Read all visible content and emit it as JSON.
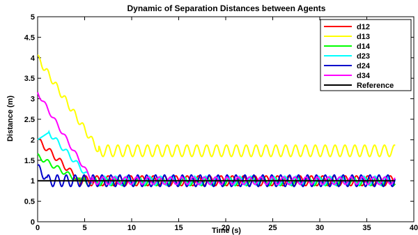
{
  "chart_data": {
    "type": "line",
    "title": "Dynamic of Separation Distances between Agents",
    "xlabel": "Time (s)",
    "ylabel": "Distance (m)",
    "xlim": [
      0,
      40
    ],
    "ylim": [
      0,
      5
    ],
    "xticks": [
      0,
      5,
      10,
      15,
      20,
      25,
      30,
      35,
      40
    ],
    "yticks": [
      0,
      0.5,
      1,
      1.5,
      2,
      2.5,
      3,
      3.5,
      4,
      4.5,
      5
    ],
    "legend_position": "top-right",
    "grid": false,
    "series": [
      {
        "name": "d12",
        "color": "#ff0000",
        "initial": 2.0,
        "settle_time": 4.5,
        "steady_mean": 1.0,
        "amplitude": 0.12,
        "period": 1.2,
        "phase": 0.0,
        "x_end": 38
      },
      {
        "name": "d13",
        "color": "#ffff00",
        "initial": 4.0,
        "settle_time": 6.5,
        "steady_mean": 1.73,
        "amplitude": 0.14,
        "period": 1.05,
        "phase": 0.8,
        "x_end": 38
      },
      {
        "name": "d14",
        "color": "#00ff00",
        "initial": 1.6,
        "settle_time": 4.5,
        "steady_mean": 0.98,
        "amplitude": 0.1,
        "period": 1.2,
        "phase": 1.5,
        "x_end": 38
      },
      {
        "name": "d23",
        "color": "#00ffff",
        "initial": 2.0,
        "peak": 2.18,
        "peak_time": 1.2,
        "settle_time": 5.8,
        "steady_mean": 1.0,
        "amplitude": 0.11,
        "period": 1.2,
        "phase": 2.2,
        "x_end": 38
      },
      {
        "name": "d24",
        "color": "#0000cc",
        "initial": 1.35,
        "settle_time": 1.0,
        "steady_mean": 1.0,
        "amplitude": 0.14,
        "period": 0.95,
        "phase": 0.3,
        "x_end": 38
      },
      {
        "name": "d34",
        "color": "#ff00ff",
        "initial": 3.15,
        "settle_time": 5.8,
        "steady_mean": 1.0,
        "amplitude": 0.09,
        "period": 1.2,
        "phase": 3.0,
        "x_end": 38
      },
      {
        "name": "Reference",
        "color": "#000000",
        "x": [
          0,
          38
        ],
        "y": [
          1,
          1
        ]
      }
    ]
  }
}
